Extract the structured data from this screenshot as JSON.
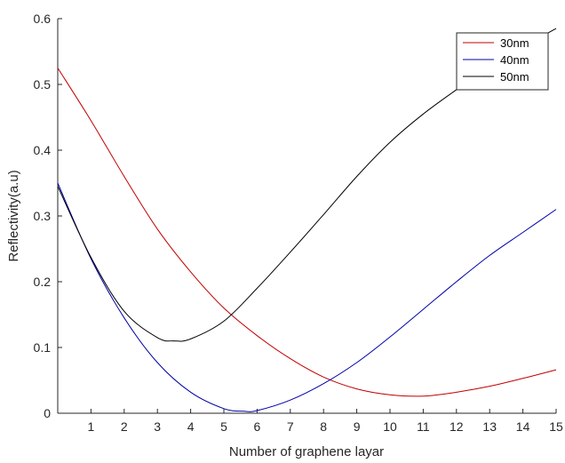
{
  "chart_data": {
    "type": "line",
    "title": "",
    "xlabel": "Number of graphene layar",
    "ylabel": "Reflectivity(a.u)",
    "xlim": [
      0,
      15
    ],
    "ylim": [
      0,
      0.6
    ],
    "xticks": [
      1,
      2,
      3,
      4,
      5,
      6,
      7,
      8,
      9,
      10,
      11,
      12,
      13,
      14,
      15
    ],
    "yticks": [
      0,
      0.1,
      0.2,
      0.3,
      0.4,
      0.5,
      0.6
    ],
    "xtick_labels": [
      "1",
      "2",
      "3",
      "4",
      "5",
      "6",
      "7",
      "8",
      "9",
      "10",
      "11",
      "12",
      "13",
      "14",
      "15"
    ],
    "ytick_labels": [
      "0",
      "0.1",
      "0.2",
      "0.3",
      "0.4",
      "0.5",
      "0.6"
    ],
    "grid": false,
    "legend_position": "top-right",
    "series": [
      {
        "name": "30nm",
        "color": "#c00000",
        "x": [
          0,
          1,
          2,
          3,
          4,
          5,
          6,
          7,
          8,
          9,
          10,
          11,
          12,
          13,
          14,
          15
        ],
        "y": [
          0.525,
          0.445,
          0.36,
          0.28,
          0.215,
          0.16,
          0.118,
          0.083,
          0.055,
          0.037,
          0.028,
          0.026,
          0.032,
          0.041,
          0.053,
          0.066
        ]
      },
      {
        "name": "40nm",
        "color": "#0000a8",
        "x": [
          0,
          1,
          2,
          3,
          4,
          5,
          5.6,
          6,
          7,
          8,
          9,
          10,
          11,
          12,
          13,
          14,
          15
        ],
        "y": [
          0.35,
          0.235,
          0.145,
          0.077,
          0.032,
          0.007,
          0.003,
          0.004,
          0.02,
          0.045,
          0.077,
          0.116,
          0.158,
          0.2,
          0.24,
          0.275,
          0.31
        ]
      },
      {
        "name": "50nm",
        "color": "#000000",
        "x": [
          0,
          1,
          2,
          3,
          3.5,
          4,
          5,
          6,
          7,
          8,
          9,
          10,
          11,
          12,
          13,
          14,
          15
        ],
        "y": [
          0.345,
          0.237,
          0.155,
          0.115,
          0.11,
          0.113,
          0.14,
          0.19,
          0.245,
          0.302,
          0.36,
          0.412,
          0.455,
          0.492,
          0.527,
          0.557,
          0.585
        ]
      }
    ]
  }
}
